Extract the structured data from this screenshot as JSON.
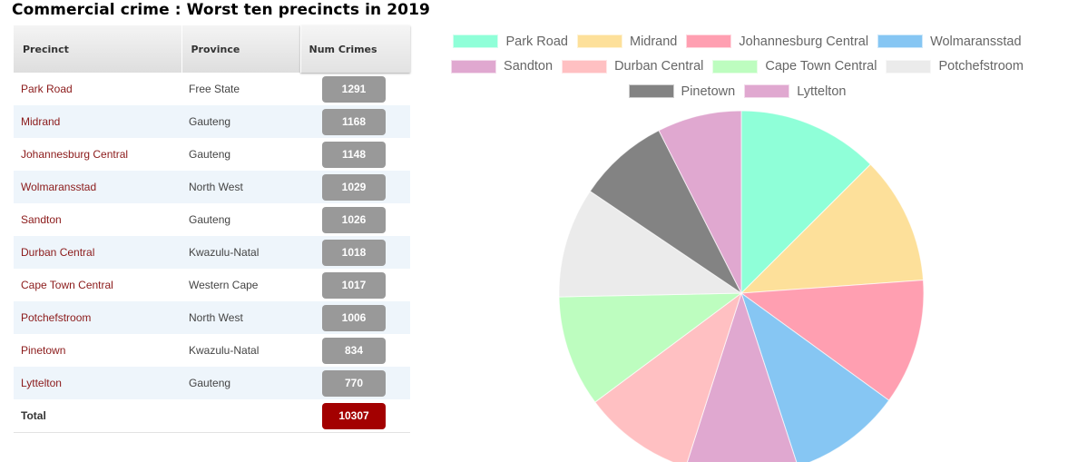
{
  "title": "Commercial crime : Worst ten precincts in 2019",
  "table": {
    "headers": [
      "Precinct",
      "Province",
      "Num Crimes"
    ],
    "rows": [
      {
        "precinct": "Park Road",
        "province": "Free State",
        "num": "1291"
      },
      {
        "precinct": "Midrand",
        "province": "Gauteng",
        "num": "1168"
      },
      {
        "precinct": "Johannesburg Central",
        "province": "Gauteng",
        "num": "1148"
      },
      {
        "precinct": "Wolmaransstad",
        "province": "North West",
        "num": "1029"
      },
      {
        "precinct": "Sandton",
        "province": "Gauteng",
        "num": "1026"
      },
      {
        "precinct": "Durban Central",
        "province": "Kwazulu-Natal",
        "num": "1018"
      },
      {
        "precinct": "Cape Town Central",
        "province": "Western Cape",
        "num": "1017"
      },
      {
        "precinct": "Potchefstroom",
        "province": "North West",
        "num": "1006"
      },
      {
        "precinct": "Pinetown",
        "province": "Kwazulu-Natal",
        "num": "834"
      },
      {
        "precinct": "Lyttelton",
        "province": "Gauteng",
        "num": "770"
      }
    ],
    "total": {
      "label": "Total",
      "num": "10307"
    },
    "colors": {
      "badge": "#999999",
      "total_badge": "#a30000",
      "precinct_text": "#8b1a1a",
      "row_alt": "#eef5fb"
    }
  },
  "chart_data": {
    "type": "pie",
    "title": "",
    "categories": [
      "Park Road",
      "Midrand",
      "Johannesburg Central",
      "Wolmaransstad",
      "Sandton",
      "Durban Central",
      "Cape Town Central",
      "Potchefstroom",
      "Pinetown",
      "Lyttelton"
    ],
    "values": [
      1291,
      1168,
      1148,
      1029,
      1026,
      1018,
      1017,
      1006,
      834,
      770
    ],
    "colors": [
      "#8fffd8",
      "#fde09a",
      "#ff9fb1",
      "#86c6f3",
      "#e0a8d0",
      "#ffc0c2",
      "#bdfdbf",
      "#ebebeb",
      "#838383",
      "#e0a8d0"
    ],
    "legend_position": "top",
    "legend_rows": [
      [
        0,
        1,
        2,
        3
      ],
      [
        4,
        5,
        6,
        7
      ],
      [
        8,
        9
      ]
    ],
    "start_angle_deg": -90,
    "center": [
      817,
      323
    ],
    "radius": 201
  }
}
